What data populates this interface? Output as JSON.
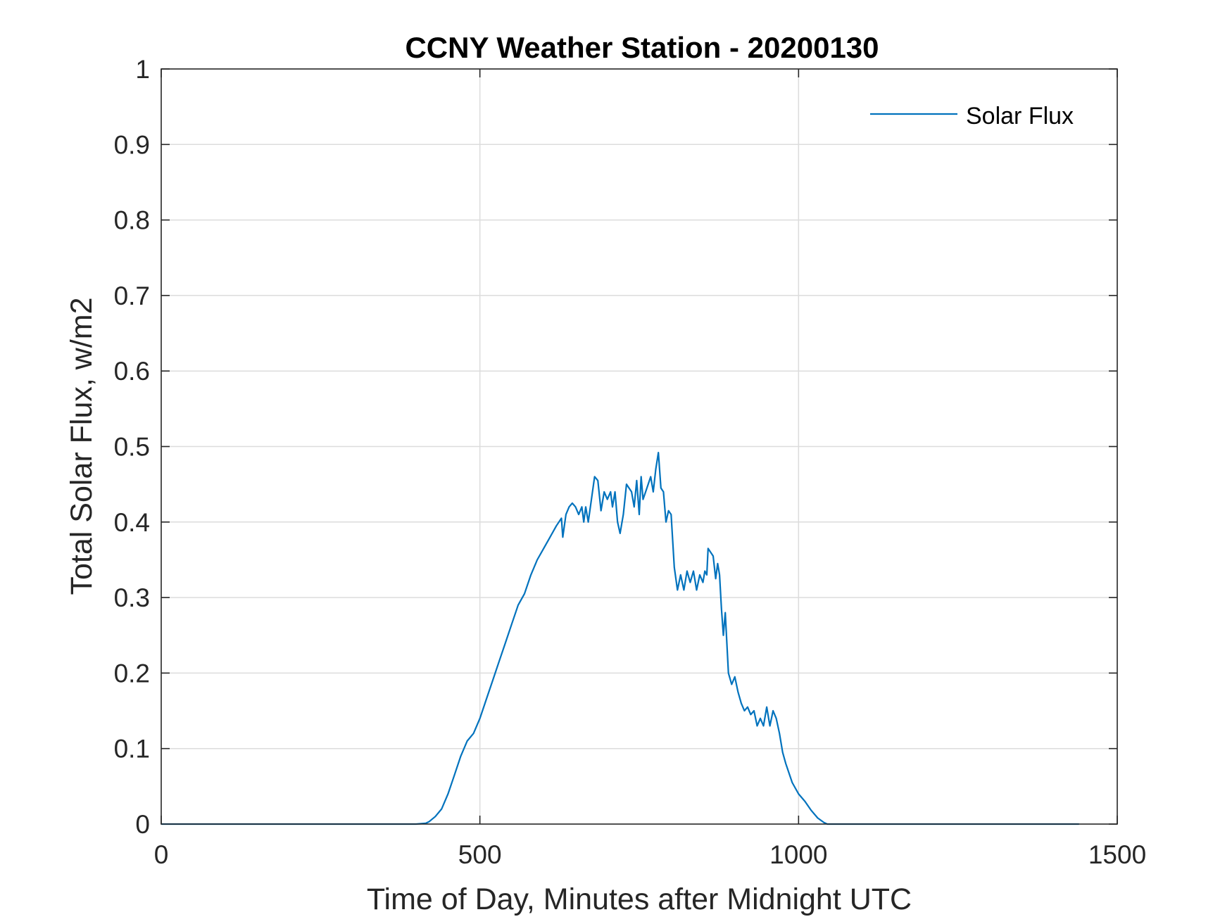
{
  "chart_data": {
    "type": "line",
    "title": "CCNY Weather Station - 20200130",
    "xlabel": "Time of Day, Minutes after Midnight UTC",
    "ylabel": "Total Solar Flux, w/m2",
    "xlim": [
      0,
      1500
    ],
    "ylim": [
      0,
      1
    ],
    "xticks": [
      0,
      500,
      1000,
      1500
    ],
    "xtick_labels": [
      "0",
      "500",
      "1000",
      "1500"
    ],
    "yticks": [
      0,
      0.1,
      0.2,
      0.3,
      0.4,
      0.5,
      0.6,
      0.7,
      0.8,
      0.9,
      1
    ],
    "ytick_labels": [
      "0",
      "0.1",
      "0.2",
      "0.3",
      "0.4",
      "0.5",
      "0.6",
      "0.7",
      "0.8",
      "0.9",
      "1"
    ],
    "grid": true,
    "legend_position": "top-right",
    "series": [
      {
        "name": "Solar Flux",
        "color": "#0072BD",
        "x": [
          0,
          100,
          200,
          300,
          400,
          415,
          420,
          430,
          440,
          450,
          460,
          470,
          480,
          490,
          500,
          510,
          520,
          530,
          540,
          550,
          560,
          570,
          580,
          590,
          600,
          610,
          620,
          628,
          630,
          635,
          640,
          645,
          650,
          655,
          660,
          663,
          666,
          670,
          675,
          680,
          685,
          690,
          695,
          700,
          705,
          708,
          712,
          716,
          720,
          725,
          730,
          734,
          738,
          742,
          746,
          750,
          753,
          756,
          760,
          764,
          768,
          772,
          776,
          780,
          784,
          788,
          792,
          796,
          800,
          805,
          810,
          815,
          820,
          825,
          830,
          835,
          840,
          845,
          850,
          853,
          856,
          858,
          862,
          866,
          870,
          873,
          876,
          879,
          882,
          885,
          890,
          895,
          900,
          905,
          910,
          915,
          920,
          925,
          930,
          935,
          940,
          945,
          950,
          955,
          960,
          965,
          970,
          975,
          980,
          990,
          1000,
          1010,
          1020,
          1030,
          1040,
          1045,
          1100,
          1200,
          1300,
          1440
        ],
        "y": [
          0,
          0,
          0,
          0,
          0,
          0.001,
          0.003,
          0.01,
          0.02,
          0.04,
          0.065,
          0.09,
          0.11,
          0.12,
          0.14,
          0.165,
          0.19,
          0.215,
          0.24,
          0.265,
          0.29,
          0.305,
          0.33,
          0.35,
          0.365,
          0.38,
          0.395,
          0.405,
          0.38,
          0.41,
          0.42,
          0.425,
          0.42,
          0.41,
          0.42,
          0.4,
          0.42,
          0.4,
          0.43,
          0.46,
          0.455,
          0.415,
          0.44,
          0.43,
          0.44,
          0.42,
          0.44,
          0.4,
          0.385,
          0.41,
          0.45,
          0.445,
          0.44,
          0.42,
          0.455,
          0.41,
          0.46,
          0.43,
          0.44,
          0.45,
          0.46,
          0.44,
          0.47,
          0.492,
          0.445,
          0.44,
          0.4,
          0.415,
          0.41,
          0.34,
          0.31,
          0.33,
          0.31,
          0.335,
          0.32,
          0.335,
          0.31,
          0.33,
          0.32,
          0.335,
          0.33,
          0.365,
          0.36,
          0.355,
          0.325,
          0.345,
          0.33,
          0.285,
          0.25,
          0.28,
          0.2,
          0.185,
          0.195,
          0.175,
          0.16,
          0.15,
          0.155,
          0.145,
          0.15,
          0.13,
          0.14,
          0.13,
          0.155,
          0.13,
          0.15,
          0.14,
          0.12,
          0.095,
          0.08,
          0.055,
          0.04,
          0.03,
          0.018,
          0.008,
          0.002,
          0,
          0,
          0,
          0,
          0
        ]
      }
    ]
  }
}
